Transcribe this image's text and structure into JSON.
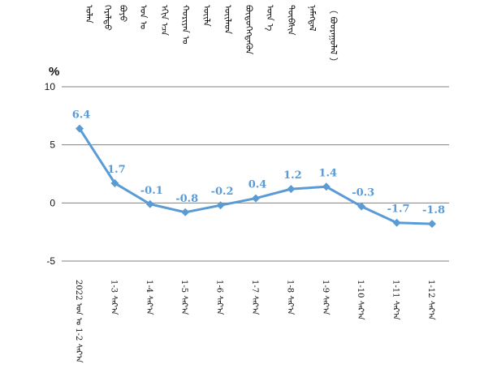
{
  "title_lines": [
    "ᠣᠯᠠᠨ",
    "ᠭᠡᠷᠡᠯᠲᠦ",
    "ᠪᠤᠶᠤ",
    "ᠣᠨ ᠤ",
    "ᠡᠬᠢᠨ ᠡᠴᠡ",
    "ᠬᠤᠷᠢᠶᠠᠨ ᠤ",
    "ᠦᠢᠯᠡ",
    "ᠦᠢᠯᠡᠳ",
    "ᠪᠦᠲᠦᠭᠡᠭᠳᠡᠬᠦᠨ",
    "ᠦᠨ ᠡ",
    "ᠲᠦᠪᠰᠢᠨ",
    "ᠨᠡᠮᠡᠭᠳᠡᠯ",
    "（ ᠪᠤᠤᠷᠠᠭᠤᠯᠠᠯ ）"
  ],
  "chart_data": {
    "type": "line",
    "ylabel": "%",
    "ylim": [
      -5,
      10
    ],
    "yticks": [
      10,
      5,
      0,
      -5
    ],
    "grid": true,
    "color": "#5b9bd5",
    "categories": [
      "2022 ᠣᠨ ᠤ 1-2 ᠰᠠᠷ᠎ᠠ",
      "1-3 ᠰᠠᠷ᠎ᠠ",
      "1-4 ᠰᠠᠷ᠎ᠠ",
      "1-5 ᠰᠠᠷ᠎ᠠ",
      "1-6 ᠰᠠᠷ᠎ᠠ",
      "1-7 ᠰᠠᠷ᠎ᠠ",
      "1-8 ᠰᠠᠷ᠎ᠠ",
      "1-9 ᠰᠠᠷ᠎ᠠ",
      "1-10 ᠰᠠᠷ᠎ᠠ",
      "1-11 ᠰᠠᠷ᠎ᠠ",
      "1-12 ᠰᠠᠷ᠎ᠠ"
    ],
    "values": [
      6.4,
      1.7,
      -0.1,
      -0.8,
      -0.2,
      0.4,
      1.2,
      1.4,
      -0.3,
      -1.7,
      -1.8
    ],
    "labels": [
      "6.4",
      "1.7",
      "-0.1",
      "-0.8",
      "-0.2",
      "0.4",
      "1.2",
      "1.4",
      "-0.3",
      "-1.7",
      "-1.8"
    ]
  }
}
